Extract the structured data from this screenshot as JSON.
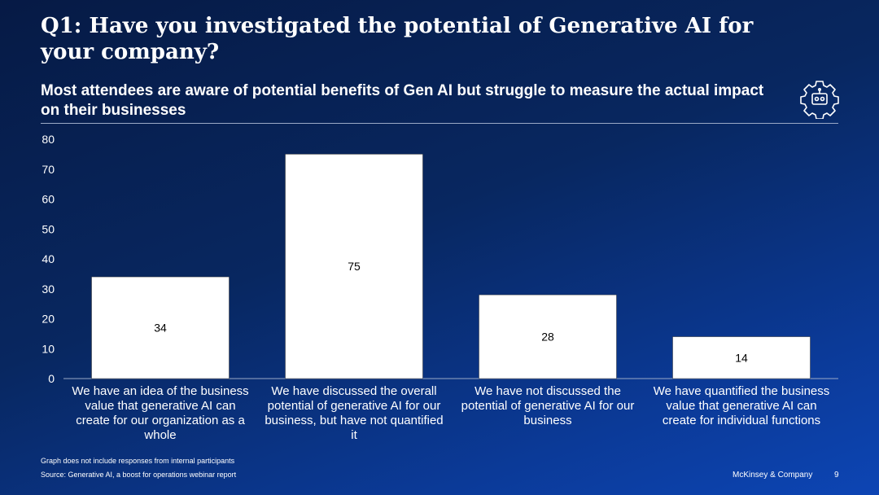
{
  "header": {
    "title": "Q1: Have you investigated the potential of Generative AI for your company?",
    "subtitle": "Most attendees are aware of potential benefits of Gen AI but struggle to measure the actual impact on their businesses"
  },
  "icons": {
    "header_icon": "robot-gear-icon"
  },
  "colors": {
    "background": "#082760",
    "bar_fill": "#ffffff",
    "text": "#ffffff",
    "label": "#000000"
  },
  "chart_data": {
    "type": "bar",
    "categories": [
      "We have an idea of the business value that generative AI can create for our organization as a whole",
      "We have discussed the overall potential of generative AI for our business, but have not quantified it",
      "We have not discussed the potential of generative AI for our business",
      "We have quantified the business value that generative AI can create for individual functions"
    ],
    "values": [
      34,
      75,
      28,
      14
    ],
    "ylim": [
      0,
      80
    ],
    "yticks": [
      0,
      10,
      20,
      30,
      40,
      50,
      60,
      70,
      80
    ],
    "data_labels": true,
    "grid": false,
    "legend": "none"
  },
  "footer": {
    "note": "Graph does not include responses from internal participants",
    "source": "Source: Generative AI, a boost for operations webinar report",
    "brand": "McKinsey & Company",
    "page": "9"
  }
}
